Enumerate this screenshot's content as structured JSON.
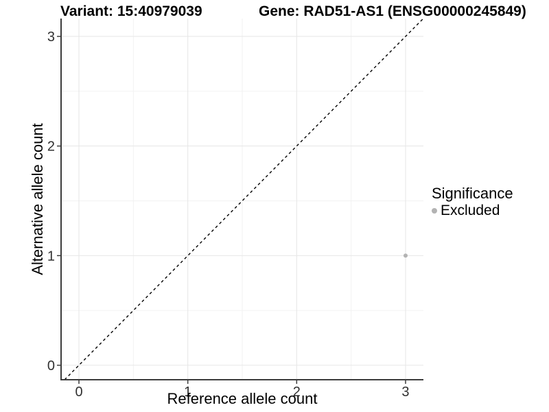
{
  "header": {
    "variant_title": "Variant: 15:40979039",
    "gene_title": "Gene: RAD51-AS1 (ENSG00000245849)"
  },
  "chart_data": {
    "type": "scatter",
    "title_left": "Variant: 15:40979039",
    "title_right": "Gene: RAD51-AS1 (ENSG00000245849)",
    "xlabel": "Reference allele count",
    "ylabel": "Alternative allele count",
    "xlim": [
      -0.164,
      3.164
    ],
    "ylim": [
      -0.132,
      3.163
    ],
    "x_ticks": [
      0,
      1,
      2,
      3
    ],
    "y_ticks": [
      0,
      1,
      2,
      3
    ],
    "x_minor_ticks": [
      0.5,
      1.5,
      2.5
    ],
    "y_minor_ticks": [
      0.5,
      1.5,
      2.5
    ],
    "grid": true,
    "legend_position": "right",
    "series": [
      {
        "name": "Excluded",
        "points": [
          {
            "x": 3,
            "y": 1
          }
        ],
        "color": "#b3b3b3",
        "marker_radius": 3
      }
    ],
    "reference_line": {
      "type": "identity",
      "label": "y = x",
      "style": "dashed",
      "color": "#000000"
    },
    "legend": {
      "title": "Significance",
      "entries": [
        {
          "label": "Excluded",
          "color": "#b3b3b3"
        }
      ]
    }
  },
  "colors": {
    "background": "#ffffff",
    "grid_major": "#e6e6e6",
    "grid_minor": "#f2f2f2",
    "axis_line": "#3c3c3c",
    "tick_mark": "#3c3c3c",
    "tick_label": "#303030",
    "point": "#b3b3b3",
    "diagonal": "#000000"
  }
}
